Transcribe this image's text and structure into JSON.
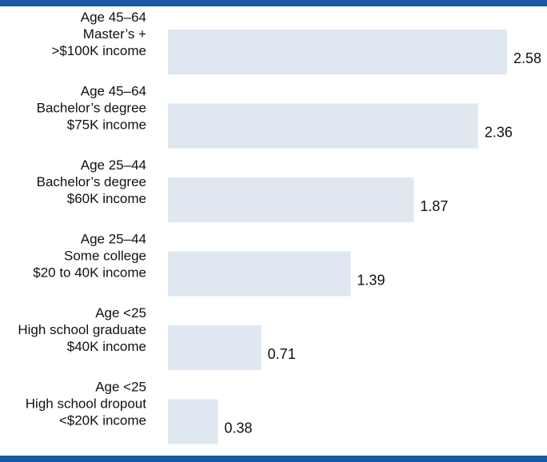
{
  "chart_data": {
    "type": "bar",
    "orientation": "horizontal",
    "categories": [
      [
        "Age 45–64",
        "Master’s +",
        ">$100K income"
      ],
      [
        "Age 45–64",
        "Bachelor’s degree",
        "$75K income"
      ],
      [
        "Age 25–44",
        "Bachelor’s degree",
        "$60K income"
      ],
      [
        "Age 25–44",
        "Some college",
        "$20 to 40K income"
      ],
      [
        "Age <25",
        "High school graduate",
        "$40K income"
      ],
      [
        "Age <25",
        "High school dropout",
        "<$20K income"
      ]
    ],
    "values": [
      2.58,
      2.36,
      1.87,
      1.39,
      0.71,
      0.38
    ],
    "value_labels": [
      "2.58",
      "2.36",
      "1.87",
      "1.39",
      "0.71",
      "0.38"
    ],
    "xlim": [
      0,
      2.58
    ],
    "grid": false,
    "axes_visible": false
  },
  "colors": {
    "bar": "#dfe7f1",
    "rule": "#1a5aa3",
    "text": "#111111"
  }
}
